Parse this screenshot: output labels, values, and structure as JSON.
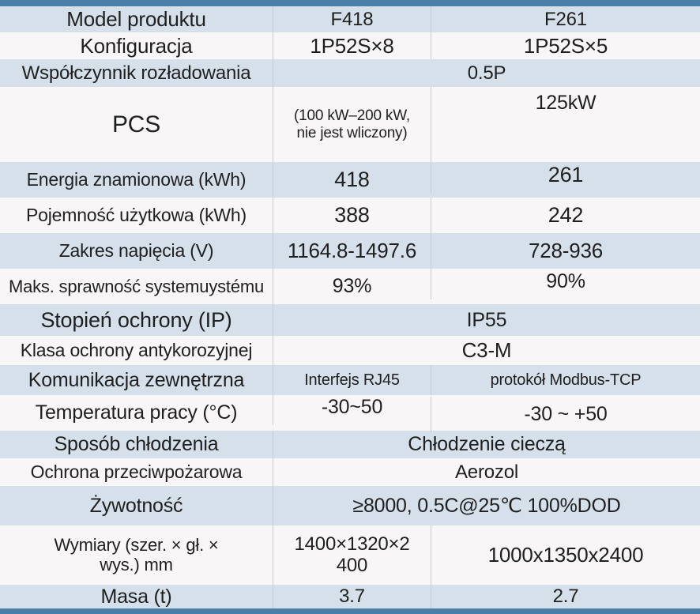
{
  "table": {
    "title": "Product specification comparison table (Polish)",
    "columns": {
      "label_header": "Model produktu",
      "product1": "F418",
      "product2": "F261"
    },
    "rows": [
      {
        "label": "Model produktu",
        "v1": "F418",
        "v2": "F261"
      },
      {
        "label": "Konfiguracja",
        "v1": "1P52S×8",
        "v2": "1P52S×5"
      },
      {
        "label": "Współczynnik rozładowania",
        "span": "0.5P"
      },
      {
        "label": "PCS",
        "v1": "(100 kW–200 kW,\nnie jest wliczony)",
        "v2": "125kW"
      },
      {
        "label": "Energia znamionowa (kWh)",
        "v1": "418",
        "v2": "261"
      },
      {
        "label": "Pojemność użytkowa (kWh)",
        "v1": "388",
        "v2": "242"
      },
      {
        "label": "Zakres napięcia (V)",
        "v1": "1164.8-1497.6",
        "v2": "728-936"
      },
      {
        "label": "Maks. sprawność systemuystému",
        "v1": "93%",
        "v2": "90%"
      },
      {
        "label": "Stopień ochrony (IP)",
        "span": "IP55"
      },
      {
        "label": "Klasa ochrony antykorozyjnej",
        "span": "C3-M"
      },
      {
        "label": "Komunikacja zewnętrzna",
        "v1": "Interfejs RJ45",
        "v2": "protokół Modbus-TCP"
      },
      {
        "label": "Temperatura pracy (°C)",
        "v1": "-30~50",
        "v2": "-30 ~ +50"
      },
      {
        "label": "Sposób chłodzenia",
        "span": "Chłodzenie cieczą"
      },
      {
        "label": "Ochrona przeciwpożarowa",
        "span": "Aerozol"
      },
      {
        "label": "Żywotność",
        "span": "≥8000, 0.5C@25℃ 100%DOD"
      },
      {
        "label": "Wymiary (szer. × gł. ×\nwys.) mm",
        "v1": "1400×1320×2\n400",
        "v2": "1000x1350x2400"
      },
      {
        "label": "Masa (t)",
        "v1": "3.7",
        "v2": "2.7"
      }
    ],
    "colors": {
      "header_bar": "#4a7fa9",
      "row_blue": "#d5e0eb",
      "row_white": "#f8f6f7",
      "divider": "#c2cdd8",
      "text": "#1f1f1f"
    }
  }
}
